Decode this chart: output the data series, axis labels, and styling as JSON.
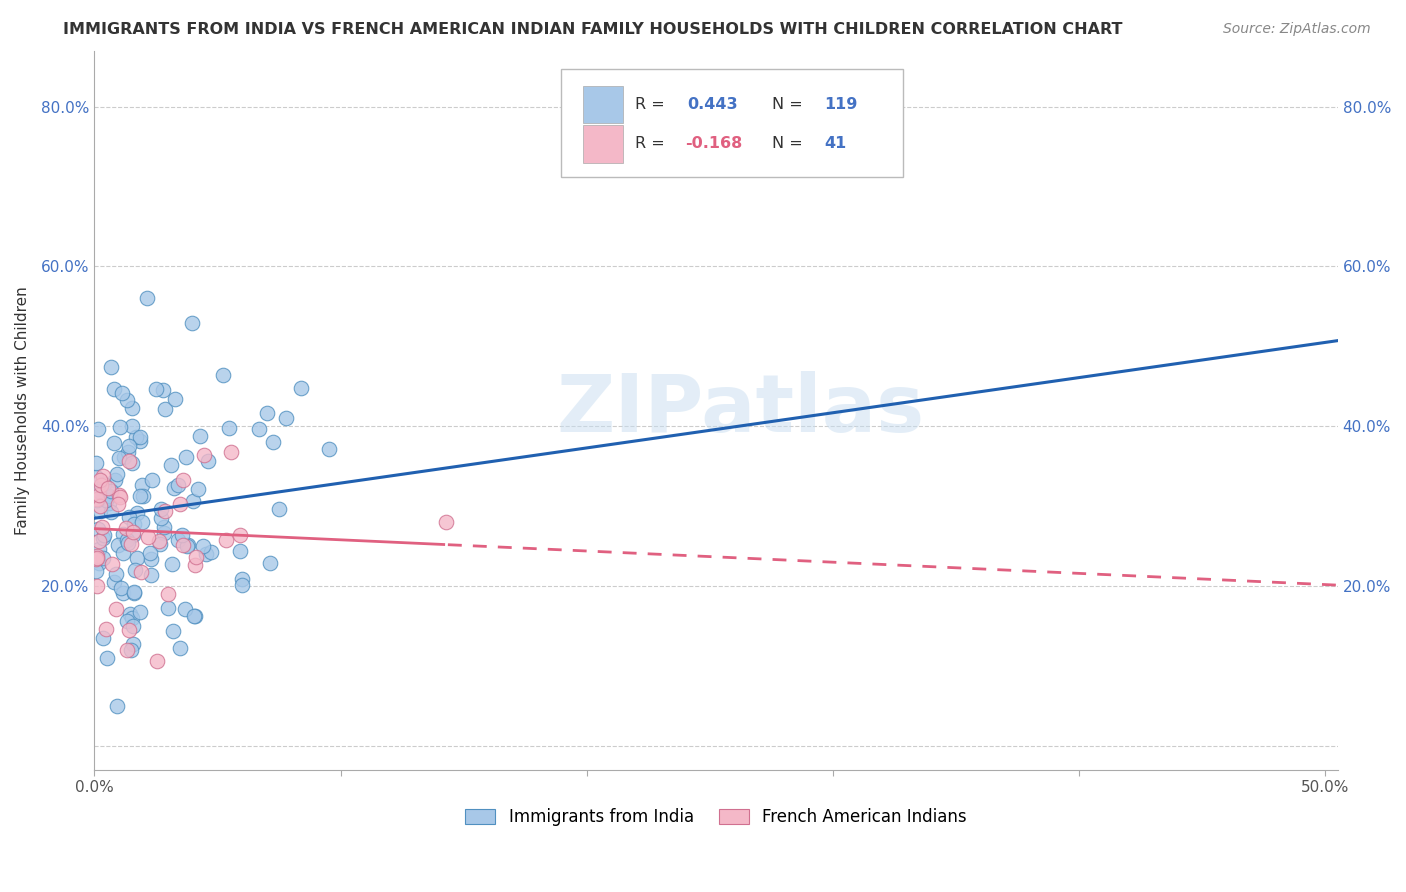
{
  "title": "IMMIGRANTS FROM INDIA VS FRENCH AMERICAN INDIAN FAMILY HOUSEHOLDS WITH CHILDREN CORRELATION CHART",
  "source": "Source: ZipAtlas.com",
  "ylabel": "Family Households with Children",
  "xlim": [
    0.0,
    0.505
  ],
  "ylim": [
    -0.03,
    0.87
  ],
  "xticks": [
    0.0,
    0.1,
    0.2,
    0.3,
    0.4,
    0.5
  ],
  "yticks": [
    0.0,
    0.2,
    0.4,
    0.6,
    0.8
  ],
  "xtick_labels": [
    "0.0%",
    "",
    "",
    "",
    "",
    "50.0%"
  ],
  "ytick_labels": [
    "",
    "20.0%",
    "40.0%",
    "60.0%",
    "80.0%"
  ],
  "legend_labels": [
    "Immigrants from India",
    "French American Indians"
  ],
  "blue_R": 0.443,
  "blue_N": 119,
  "pink_R": -0.168,
  "pink_N": 41,
  "blue_color": "#a8c8e8",
  "pink_color": "#f4b8c8",
  "blue_line_color": "#2060b0",
  "pink_line_color": "#e06080",
  "watermark": "ZIPatlas"
}
